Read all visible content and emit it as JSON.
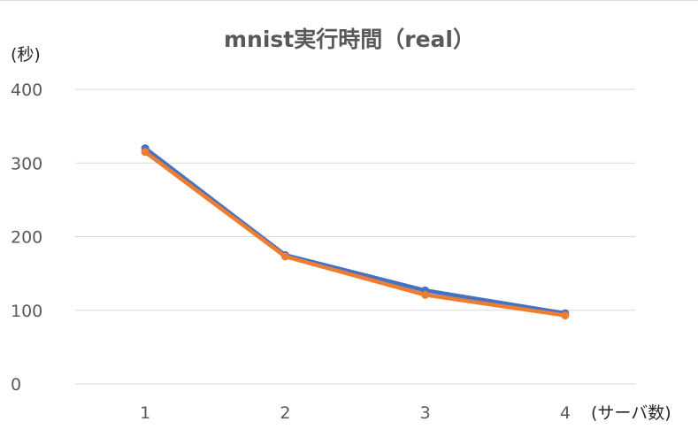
{
  "chart_data": {
    "type": "line",
    "title": "mnist実行時間（real）",
    "ylabel": "(秒)",
    "xlabel": "(サーバ数)",
    "x": [
      "1",
      "2",
      "3",
      "4"
    ],
    "ylim": [
      0,
      400
    ],
    "yticks": [
      0,
      100,
      200,
      300,
      400
    ],
    "grid": true,
    "series": [
      {
        "color": "#4472c4",
        "values": [
          320,
          175,
          127,
          96
        ]
      },
      {
        "color": "#ed7d31",
        "values": [
          315,
          173,
          121,
          93
        ]
      }
    ]
  }
}
